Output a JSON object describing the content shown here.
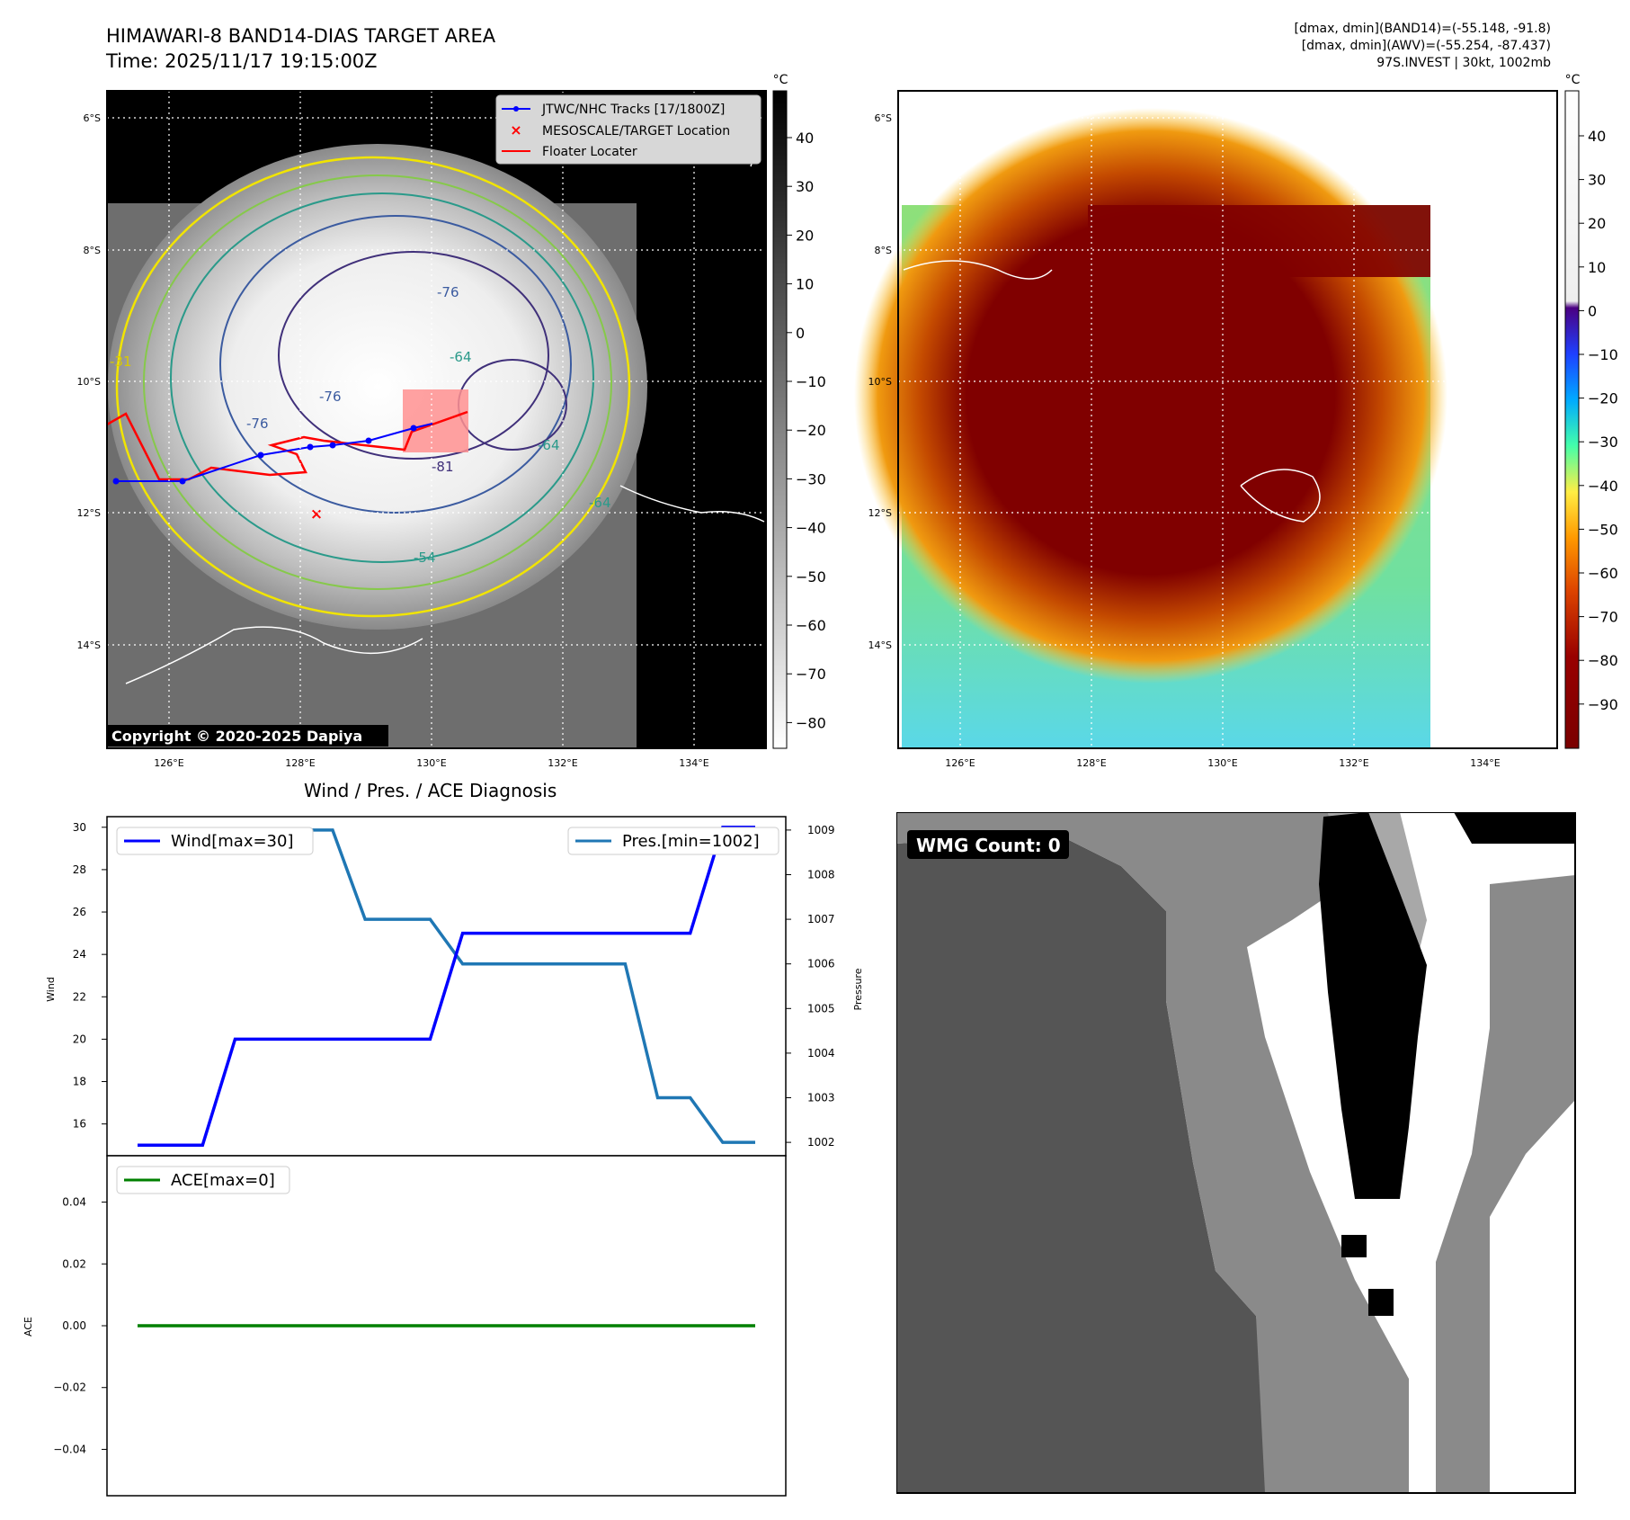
{
  "header": {
    "title_line1": "HIMAWARI-8 BAND14-DIAS TARGET AREA",
    "title_line2": "Time: 2025/11/17 19:15:00Z",
    "stat_line1": "[dmax, dmin](BAND14)=(-55.148, -91.8)",
    "stat_line2": "[dmax, dmin](AWV)=(-55.254, -87.437)",
    "stat_line3": "97S.INVEST | 30kt, 1002mb"
  },
  "map": {
    "lat_labels": [
      "6°S",
      "8°S",
      "10°S",
      "12°S",
      "14°S"
    ],
    "lon_labels": [
      "126°E",
      "128°E",
      "130°E",
      "132°E",
      "134°E"
    ],
    "legend": [
      "JTWC/NHC Tracks [17/1800Z]",
      "MESOSCALE/TARGET Location",
      "Floater Locater"
    ],
    "copyright": "Copyright © 2020-2025 Dapiya",
    "contour_labels": [
      "-76",
      "-76",
      "-64",
      "-64",
      "-54",
      "-31",
      "-81",
      "-76",
      "-64"
    ],
    "colorbar_unit": "°C",
    "colorbar1_ticks": [
      "40",
      "30",
      "20",
      "10",
      "0",
      "−10",
      "−20",
      "−30",
      "−40",
      "−50",
      "−60",
      "−70",
      "−80"
    ],
    "colorbar2_ticks": [
      "40",
      "30",
      "20",
      "10",
      "0",
      "−10",
      "−20",
      "−30",
      "−40",
      "−50",
      "−60",
      "−70",
      "−80",
      "−90"
    ],
    "track_color": "#0000ff",
    "floater_color": "#ff0000"
  },
  "diagnosis_title": "Wind / Pres. / ACE Diagnosis",
  "chart_data": [
    {
      "type": "line",
      "title": "Wind / Pres. / ACE Diagnosis",
      "x": [
        0,
        1,
        2,
        3,
        4,
        5,
        6,
        7,
        8,
        9,
        10,
        11,
        12,
        13,
        14,
        15,
        16,
        17,
        18,
        19
      ],
      "series": [
        {
          "name": "Wind[max=30]",
          "axis": "left",
          "color": "#0000ff",
          "values": [
            15,
            15,
            15,
            20,
            20,
            20,
            20,
            20,
            20,
            20,
            25,
            25,
            25,
            25,
            25,
            25,
            25,
            25,
            30,
            30
          ]
        },
        {
          "name": "Pres.[min=1002]",
          "axis": "right",
          "color": "#1f77b4",
          "values": [
            1009,
            1009,
            1009,
            1009,
            1009,
            1009,
            1009,
            1007,
            1007,
            1007,
            1006,
            1006,
            1006,
            1006,
            1006,
            1006,
            1003,
            1003,
            1002,
            1002
          ]
        }
      ],
      "ylabel": "Wind",
      "y2label": "Pressure",
      "ylim": [
        14.5,
        30.5
      ],
      "y2lim": [
        1001.7,
        1009.3
      ],
      "yticks": [
        "16",
        "18",
        "20",
        "22",
        "24",
        "26",
        "28",
        "30"
      ],
      "y2ticks": [
        "1002",
        "1003",
        "1004",
        "1005",
        "1006",
        "1007",
        "1008",
        "1009"
      ]
    },
    {
      "type": "line",
      "x": [
        0,
        1,
        2,
        3,
        4,
        5,
        6,
        7,
        8,
        9,
        10,
        11,
        12,
        13,
        14,
        15,
        16,
        17,
        18,
        19
      ],
      "series": [
        {
          "name": "ACE[max=0]",
          "color": "#008000",
          "values": [
            0,
            0,
            0,
            0,
            0,
            0,
            0,
            0,
            0,
            0,
            0,
            0,
            0,
            0,
            0,
            0,
            0,
            0,
            0,
            0
          ]
        }
      ],
      "ylabel": "ACE",
      "ylim": [
        -0.055,
        0.055
      ],
      "yticks": [
        "0.04",
        "0.02",
        "0.00",
        "−0.02",
        "−0.04"
      ]
    }
  ],
  "wmg": {
    "label": "WMG Count: 0"
  }
}
